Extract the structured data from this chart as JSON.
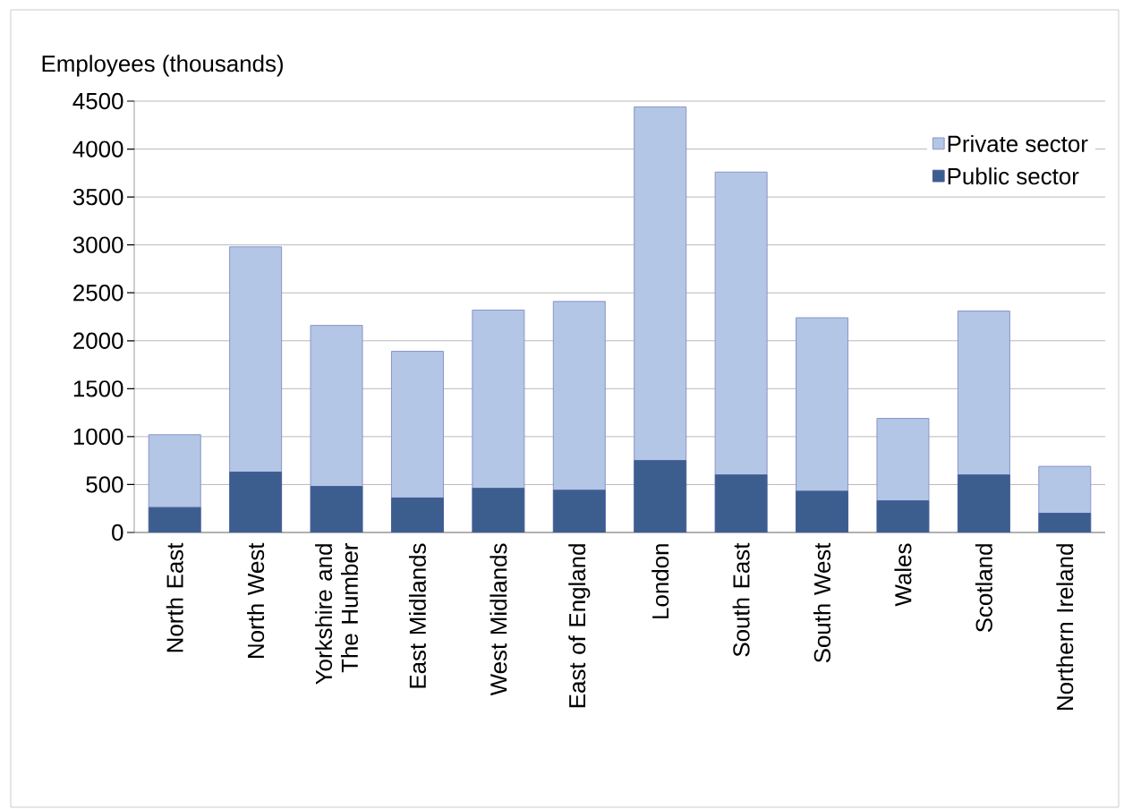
{
  "chart_data": {
    "type": "bar",
    "stacked": true,
    "ylabel": "Employees (thousands)",
    "categories": [
      "North East",
      "North West",
      "Yorkshire and The Humber",
      "East Midlands",
      "West Midlands",
      "East of England",
      "London",
      "South East",
      "South West",
      "Wales",
      "Scotland",
      "Northern Ireland"
    ],
    "series": [
      {
        "name": "Public sector",
        "color": "#3c5e8f",
        "values": [
          260,
          630,
          480,
          360,
          460,
          440,
          750,
          600,
          430,
          330,
          600,
          200
        ]
      },
      {
        "name": "Private sector",
        "color": "#b3c6e5",
        "values": [
          760,
          2350,
          1680,
          1530,
          1860,
          1970,
          3690,
          3160,
          1810,
          860,
          1710,
          490
        ]
      }
    ],
    "ylim": [
      0,
      4500
    ],
    "yticks": [
      0,
      500,
      1000,
      1500,
      2000,
      2500,
      3000,
      3500,
      4000,
      4500
    ],
    "grid": "y",
    "legend": "top right"
  }
}
